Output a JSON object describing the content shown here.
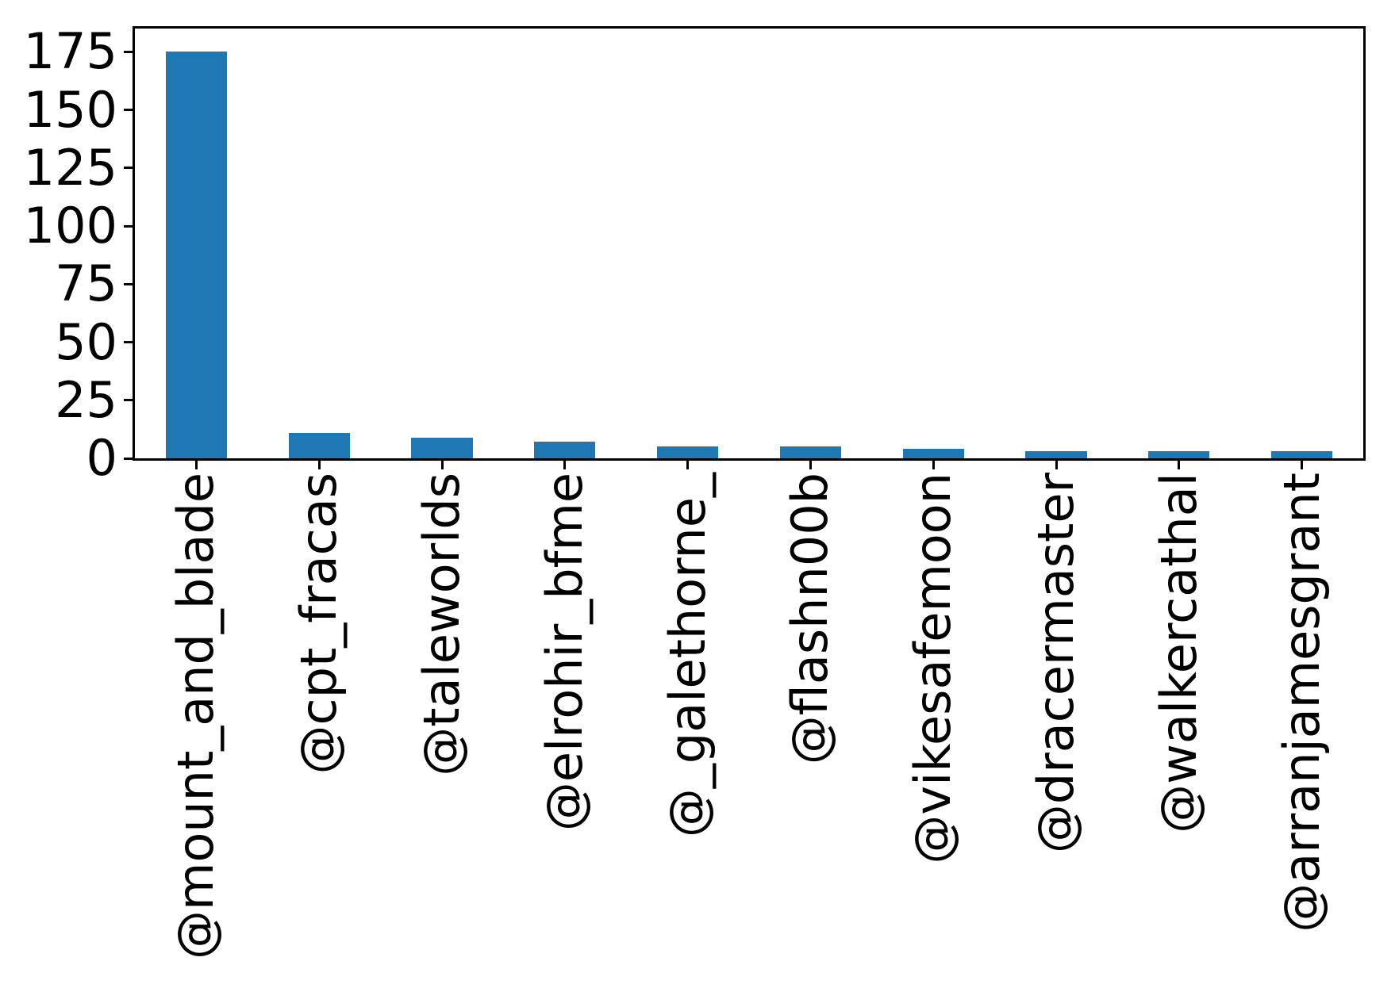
{
  "chart_data": {
    "type": "bar",
    "title": "",
    "xlabel": "",
    "ylabel": "",
    "categories": [
      "@mount_and_blade",
      "@cpt_fracas",
      "@taleworlds",
      "@elrohir_bfme",
      "@_galethorne_",
      "@flashn00b",
      "@vikesafemoon",
      "@dracermaster",
      "@walkercathal",
      "@arranjamesgrant"
    ],
    "values": [
      175,
      11,
      9,
      7,
      5,
      5,
      4,
      3,
      3,
      3
    ],
    "yticks": [
      0,
      25,
      50,
      75,
      100,
      125,
      150,
      175
    ],
    "ylim": [
      0,
      185
    ],
    "x_tick_rotation": 90,
    "grid": false,
    "legend": "none",
    "bar_width_fraction": 0.5,
    "colors": {
      "bar": "#1f77b4",
      "text": "#000000",
      "spine": "#000000",
      "background": "#ffffff"
    }
  }
}
